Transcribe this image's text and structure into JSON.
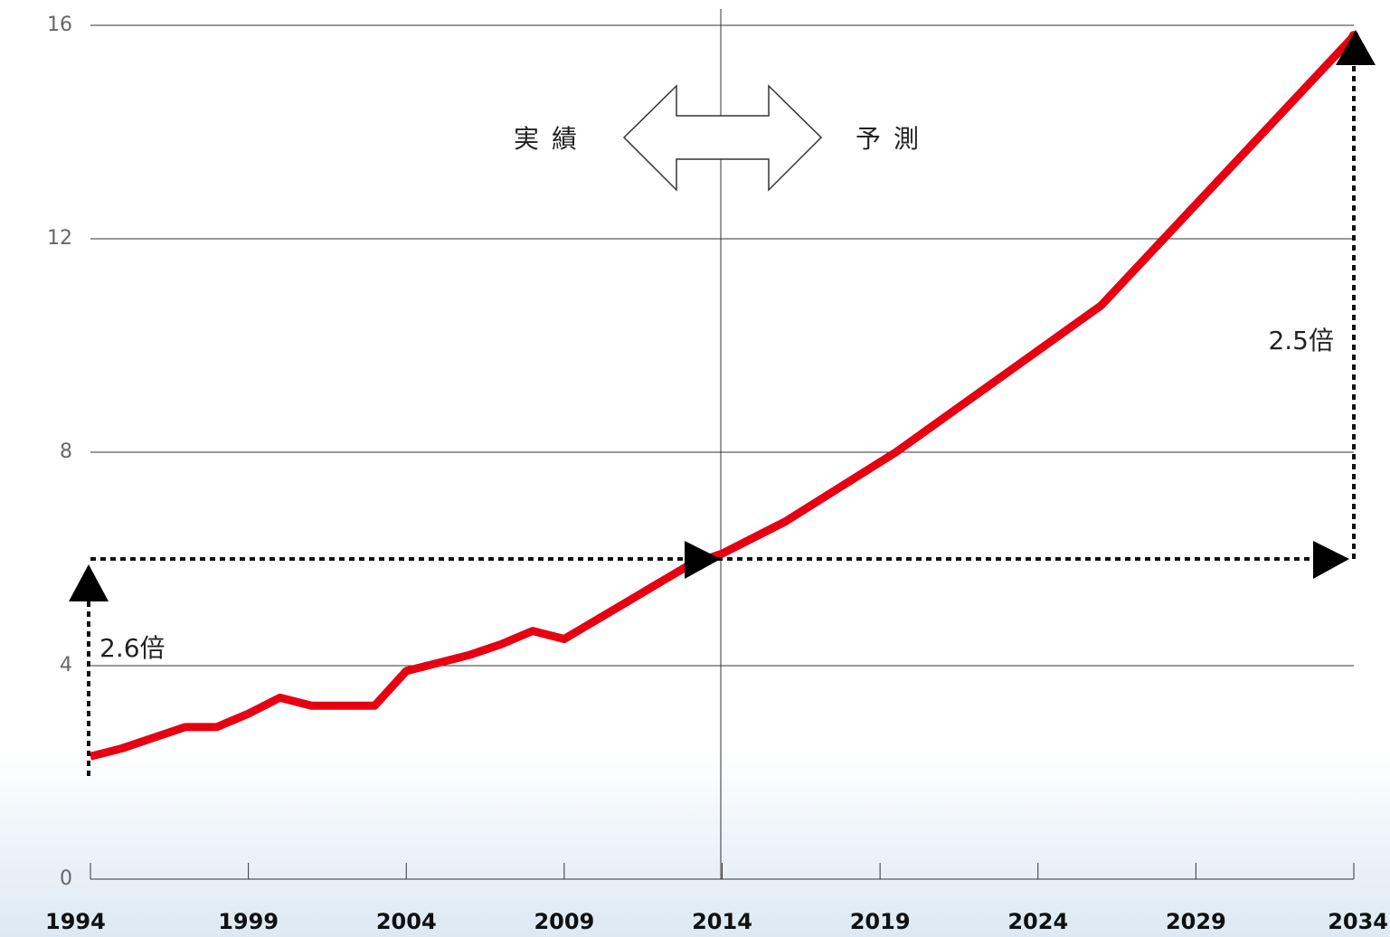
{
  "chart_data": {
    "type": "line",
    "x": [
      1994,
      1995,
      1996,
      1997,
      1998,
      1999,
      2000,
      2001,
      2002,
      2003,
      2004,
      2005,
      2006,
      2007,
      2008,
      2009,
      2010,
      2011,
      2012,
      2013,
      2014,
      2016,
      2019.5,
      2026,
      2034
    ],
    "series": [
      {
        "color": "#e60012",
        "values": [
          2.3,
          2.45,
          2.65,
          2.85,
          2.85,
          3.1,
          3.4,
          3.25,
          3.25,
          3.25,
          3.9,
          4.05,
          4.2,
          4.4,
          4.65,
          4.5,
          4.85,
          5.2,
          5.55,
          5.9,
          6.1,
          6.7,
          8.0,
          10.75,
          15.8
        ]
      }
    ],
    "xlim": [
      1994,
      2034
    ],
    "xticks": [
      1994,
      1999,
      2004,
      2009,
      2014,
      2019,
      2024,
      2029,
      2034
    ],
    "ylim": [
      0,
      16
    ],
    "yticks": [
      0,
      4,
      8,
      12,
      16
    ],
    "grid": true,
    "annotations": [
      "実績",
      "予測",
      "2.6倍",
      "2.5倍"
    ]
  }
}
